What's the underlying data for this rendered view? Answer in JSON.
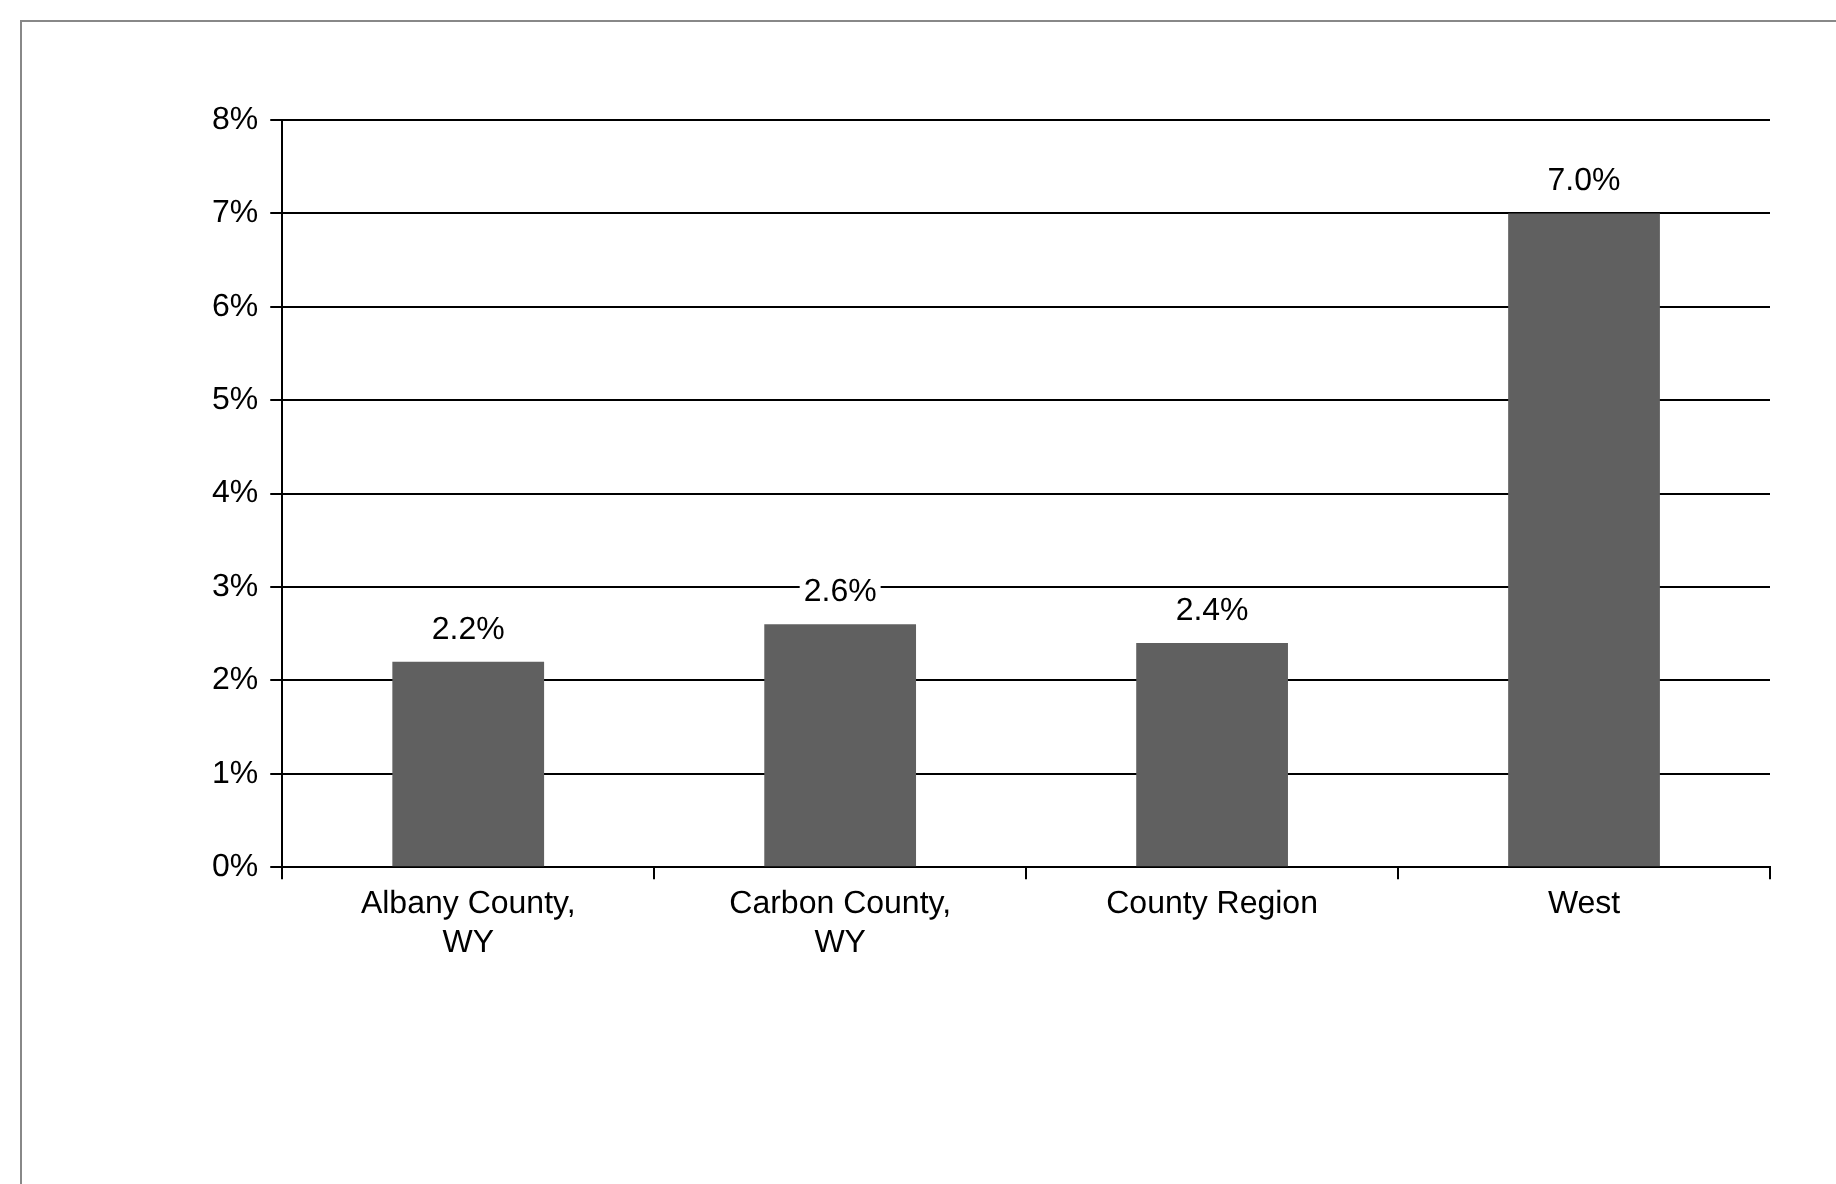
{
  "chart_data": {
    "type": "bar",
    "categories": [
      "Albany County, WY",
      "Carbon County, WY",
      "County Region",
      "West"
    ],
    "values": [
      2.2,
      2.6,
      2.4,
      7.0
    ],
    "color": "#606060",
    "value_labels": [
      "2.2%",
      "2.6%",
      "2.4%",
      "7.0%"
    ],
    "ylim": [
      0,
      8
    ],
    "yticks": [
      {
        "value": 0,
        "label": "0%"
      },
      {
        "value": 1,
        "label": "1%"
      },
      {
        "value": 2,
        "label": "2%"
      },
      {
        "value": 3,
        "label": "3%"
      },
      {
        "value": 4,
        "label": "4%"
      },
      {
        "value": 5,
        "label": "5%"
      },
      {
        "value": 6,
        "label": "6%"
      },
      {
        "value": 7,
        "label": "7%"
      },
      {
        "value": 8,
        "label": "8%"
      }
    ],
    "grid": "y",
    "legend": false
  }
}
